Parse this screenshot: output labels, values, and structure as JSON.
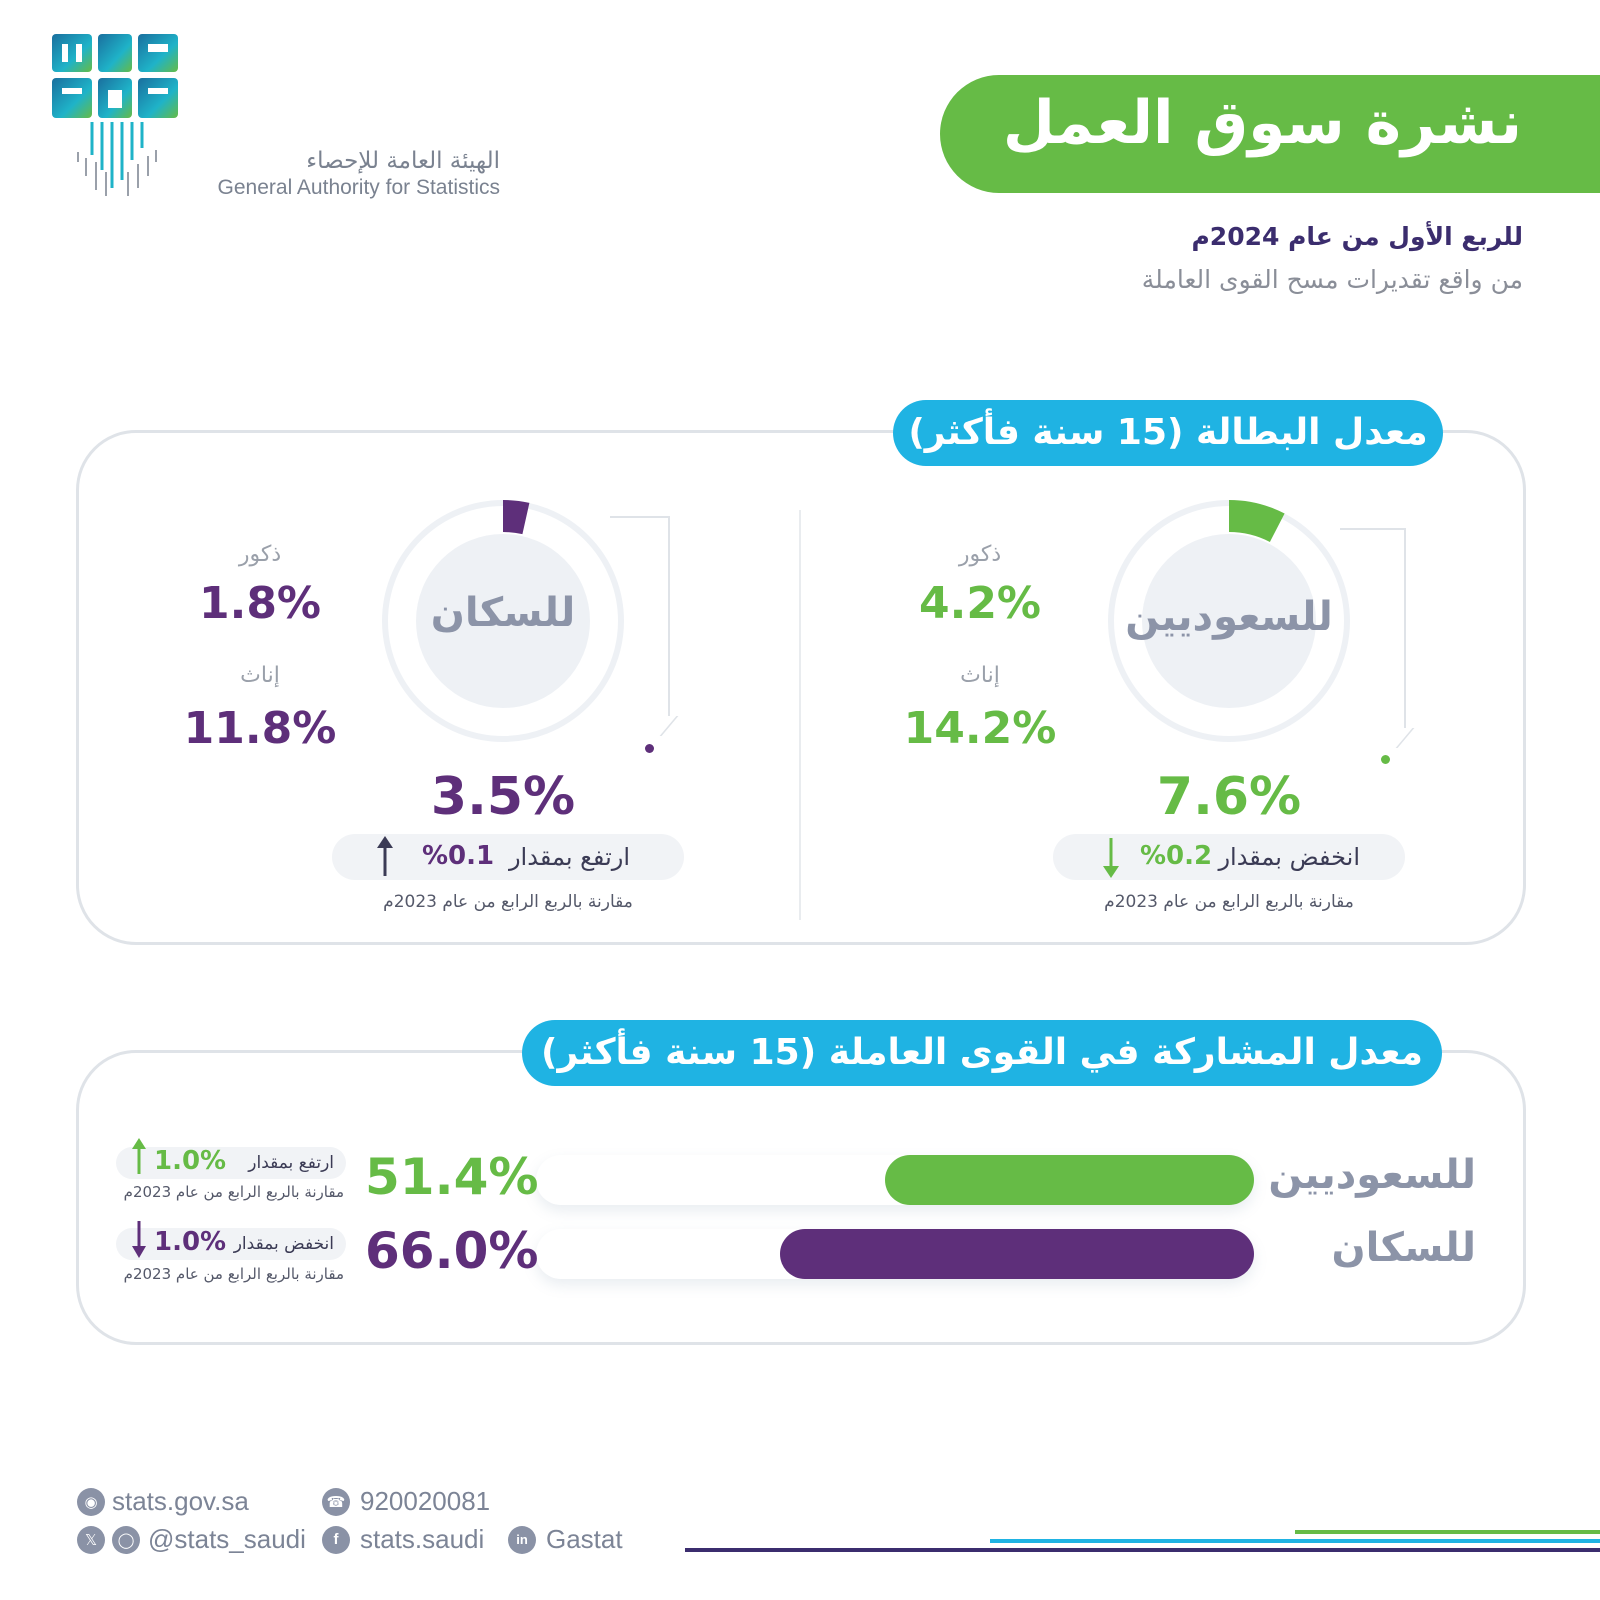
{
  "colors": {
    "green": "#66bb46",
    "purple": "#5e2f7a",
    "cyan": "#1fb3e3",
    "navy": "#3b2d6e"
  },
  "header": {
    "logo_ar": "الهيئة العامة للإحصاء",
    "logo_en": "General Authority for Statistics",
    "title": "نشرة سوق العمل",
    "period": "للربع الأول من عام 2024م",
    "source": "من واقع تقديرات مسح القوى العاملة"
  },
  "unemployment": {
    "heading": "معدل البطالة (15 سنة فأكثر)",
    "saudis": {
      "label": "للسعوديين",
      "rate": "7.6%",
      "rate_value": 7.6,
      "males_label": "ذكور",
      "males": "4.2%",
      "females_label": "إناث",
      "females": "14.2%",
      "change_text": "انخفض بمقدار",
      "change_value": "%0.2",
      "change_direction": "down",
      "comparison": "مقارنة بالربع الرابع من عام 2023م"
    },
    "population": {
      "label": "للسكان",
      "rate": "3.5%",
      "rate_value": 3.5,
      "males_label": "ذكور",
      "males": "1.8%",
      "females_label": "إناث",
      "females": "11.8%",
      "change_text": "ارتفع بمقدار",
      "change_value": "%0.1",
      "change_direction": "up",
      "comparison": "مقارنة بالربع الرابع من عام 2023م"
    }
  },
  "participation": {
    "heading": "معدل المشاركة في القوى العاملة (15 سنة فأكثر)",
    "rows": [
      {
        "label": "للسعوديين",
        "value": "51.4%",
        "fill_percent": 51.4,
        "change_text": "ارتفع بمقدار",
        "change_value": "1.0%",
        "change_direction": "up",
        "comparison": "مقارنة بالربع الرابع من عام 2023م"
      },
      {
        "label": "للسكان",
        "value": "66.0%",
        "fill_percent": 66.0,
        "change_text": "انخفض بمقدار",
        "change_value": "1.0%",
        "change_direction": "down",
        "comparison": "مقارنة بالربع الرابع من عام 2023م"
      }
    ]
  },
  "footer": {
    "website": "stats.gov.sa",
    "phone": "920020081",
    "social_handle": "@stats_saudi",
    "facebook": "stats.saudi",
    "linkedin": "Gastat",
    "icons": [
      "globe-icon",
      "phone-icon",
      "x-icon",
      "instagram-icon",
      "facebook-icon",
      "linkedin-icon"
    ]
  }
}
